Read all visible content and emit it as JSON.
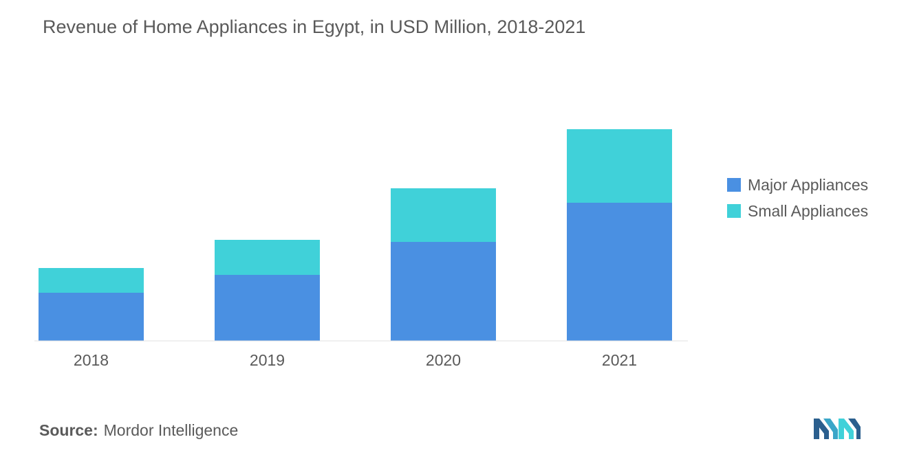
{
  "title": "Revenue of Home Appliances in Egypt, in USD Million, 2018-2021",
  "source": {
    "label": "Source:",
    "value": "Mordor Intelligence"
  },
  "legend": {
    "position": "right"
  },
  "colors": {
    "major": "#4a90e2",
    "small": "#40d1d9",
    "text": "#5a5a5a",
    "axis": "#e0e0e0"
  },
  "logo": {
    "name": "mordor-intelligence-logo"
  },
  "chart_data": {
    "type": "bar",
    "stacked": true,
    "title": "Revenue of Home Appliances in Egypt, in USD Million, 2018-2021",
    "xlabel": "",
    "ylabel": "",
    "categories": [
      "2018",
      "2019",
      "2020",
      "2021"
    ],
    "series": [
      {
        "name": "Major Appliances",
        "values": [
          70,
          96,
          144,
          201
        ]
      },
      {
        "name": "Small Appliances",
        "values": [
          36,
          51,
          78,
          107
        ]
      }
    ],
    "ylim": [
      0,
      320
    ],
    "grid": false,
    "y_axis_visible": false
  }
}
